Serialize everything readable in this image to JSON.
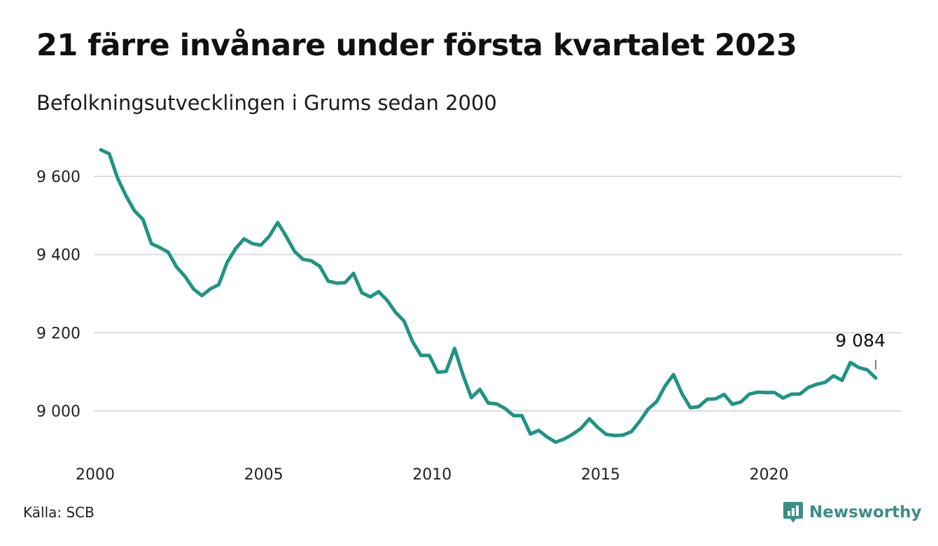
{
  "title": "21 färre invånare under första kvartalet 2023",
  "subtitle": "Befolkningsutvecklingen i Grums sedan 2000",
  "source": "Källa: SCB",
  "brand": {
    "name": "Newsworthy",
    "icon": "newsworthy-logo-icon",
    "color": "#3a8f86"
  },
  "colors": {
    "line": "#1f9485",
    "grid": "#dddddd"
  },
  "chart_data": {
    "type": "line",
    "title": "21 färre invånare under första kvartalet 2023",
    "subtitle": "Befolkningsutvecklingen i Grums sedan 2000",
    "xlabel": "",
    "ylabel": "",
    "x_start": "2000-03-31",
    "x_frequency": "quarterly",
    "x_ticks": [
      2000,
      2005,
      2010,
      2015,
      2020
    ],
    "x_tick_labels": [
      "2000",
      "2005",
      "2010",
      "2015",
      "2020"
    ],
    "y_ticks": [
      9000,
      9200,
      9400,
      9600
    ],
    "y_tick_labels": [
      "9 000",
      "9 200",
      "9 400",
      "9 600"
    ],
    "ylim": [
      8900,
      9680
    ],
    "grid": "horizontal",
    "end_label": "9 084",
    "series": [
      {
        "values": [
          9668,
          9658,
          9595,
          9550,
          9512,
          9490,
          9428,
          9418,
          9406,
          9368,
          9344,
          9312,
          9295,
          9312,
          9323,
          9380,
          9415,
          9440,
          9428,
          9424,
          9447,
          9482,
          9447,
          9408,
          9388,
          9384,
          9370,
          9332,
          9327,
          9328,
          9352,
          9302,
          9292,
          9305,
          9283,
          9252,
          9230,
          9178,
          9142,
          9142,
          9099,
          9101,
          9160,
          9092,
          9034,
          9055,
          9020,
          9018,
          9006,
          8988,
          8988,
          8941,
          8950,
          8933,
          8920,
          8928,
          8940,
          8955,
          8980,
          8958,
          8940,
          8937,
          8938,
          8947,
          8974,
          9005,
          9024,
          9064,
          9093,
          9044,
          9008,
          9011,
          9030,
          9031,
          9042,
          9017,
          9023,
          9043,
          9048,
          9047,
          9047,
          9033,
          9043,
          9043,
          9060,
          9068,
          9073,
          9090,
          9078,
          9124,
          9111,
          9105,
          9084
        ]
      }
    ]
  }
}
